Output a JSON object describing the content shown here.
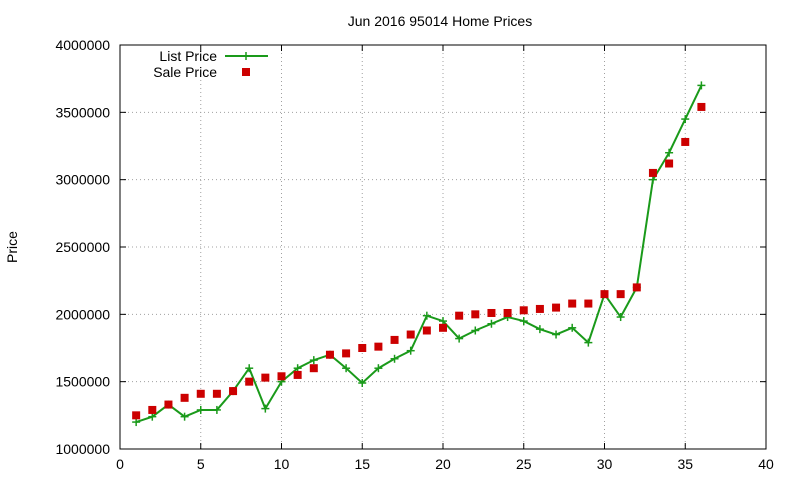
{
  "chart_data": {
    "type": "line",
    "title": "Jun 2016 95014 Home Prices",
    "xlabel": "",
    "ylabel": "Price",
    "xlim": [
      0,
      40
    ],
    "ylim": [
      1000000,
      4000000
    ],
    "x_ticks": [
      0,
      5,
      10,
      15,
      20,
      25,
      30,
      35,
      40
    ],
    "y_ticks": [
      1000000,
      1500000,
      2000000,
      2500000,
      3000000,
      3500000,
      4000000
    ],
    "grid": true,
    "legend_position": "top-left",
    "x": [
      1,
      2,
      3,
      4,
      5,
      6,
      7,
      8,
      9,
      10,
      11,
      12,
      13,
      14,
      15,
      16,
      17,
      18,
      19,
      20,
      21,
      22,
      23,
      24,
      25,
      26,
      27,
      28,
      29,
      30,
      31,
      32,
      33,
      34,
      35,
      36
    ],
    "series": [
      {
        "name": "List Price",
        "style": "line-points",
        "color": "#1a9a1a",
        "values": [
          1200000,
          1240000,
          1330000,
          1240000,
          1290000,
          1290000,
          1430000,
          1600000,
          1300000,
          1500000,
          1600000,
          1660000,
          1700000,
          1600000,
          1490000,
          1600000,
          1670000,
          1730000,
          1990000,
          1950000,
          1820000,
          1880000,
          1930000,
          1980000,
          1950000,
          1890000,
          1850000,
          1900000,
          1790000,
          2150000,
          1980000,
          2200000,
          3000000,
          3200000,
          3450000,
          3700000
        ]
      },
      {
        "name": "Sale Price",
        "style": "points",
        "color": "#cc0000",
        "values": [
          1250000,
          1290000,
          1330000,
          1380000,
          1410000,
          1410000,
          1430000,
          1500000,
          1530000,
          1540000,
          1550000,
          1600000,
          1700000,
          1710000,
          1750000,
          1760000,
          1810000,
          1850000,
          1880000,
          1900000,
          1990000,
          2000000,
          2010000,
          2010000,
          2030000,
          2040000,
          2050000,
          2080000,
          2080000,
          2150000,
          2150000,
          2200000,
          3050000,
          3120000,
          3280000,
          3540000
        ]
      }
    ]
  }
}
